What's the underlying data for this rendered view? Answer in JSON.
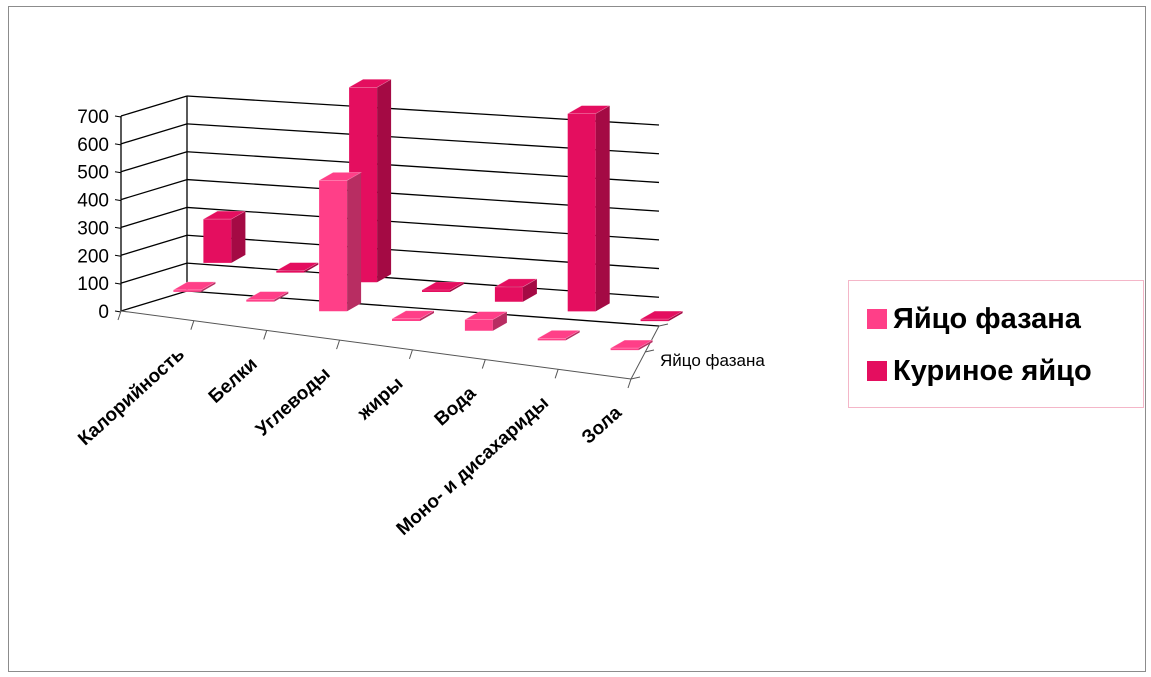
{
  "chart_data": {
    "type": "bar",
    "title": "",
    "categories": [
      "Калорийность",
      "Белки",
      "Углеводы",
      "жиры",
      "Вода",
      "Моно- и дисахариды",
      "Зола"
    ],
    "series": [
      {
        "name": "Яйцо фазана",
        "values": [
          4,
          7,
          470,
          8,
          40,
          2,
          3
        ],
        "color": "#ff3f88"
      },
      {
        "name": "Куриное яйцо",
        "values": [
          157,
          5,
          700,
          3,
          53,
          710,
          1
        ],
        "color": "#e40e5f"
      }
    ],
    "yticks": [
      "0",
      "100",
      "200",
      "300",
      "400",
      "500",
      "600",
      "700"
    ],
    "ylim": [
      0,
      700
    ],
    "depth_label": "Яйцо фазана",
    "legend_position": "right",
    "grid": true,
    "style": "3d-column"
  }
}
